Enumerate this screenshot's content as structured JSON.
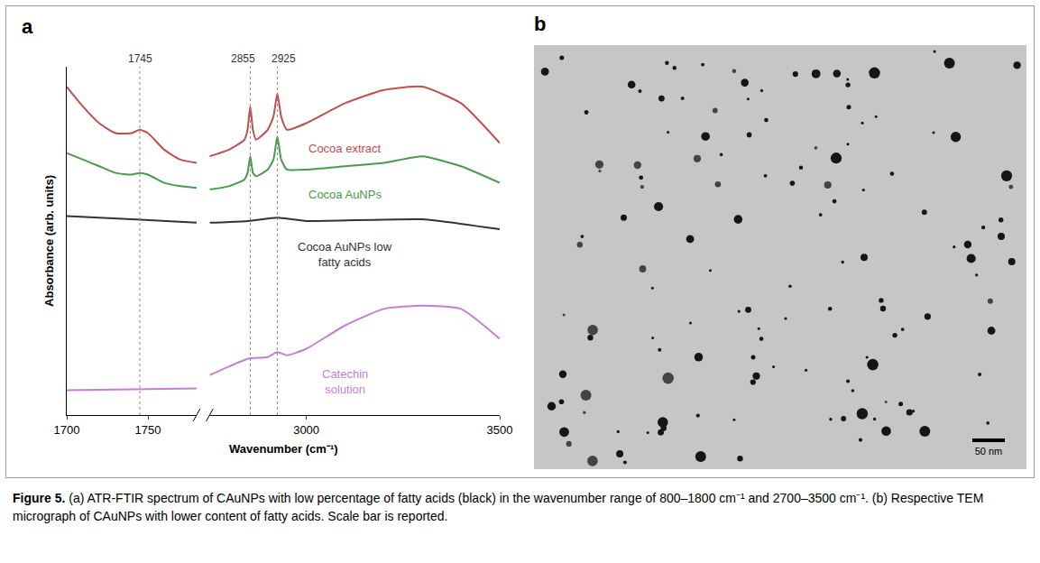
{
  "chart_data": {
    "type": "line",
    "label": "a",
    "x_title": "Wavenumber (cm⁻¹)",
    "y_title": "Absorbance (arb. units)",
    "xlim": [
      [
        1700,
        1780
      ],
      [
        2750,
        3500
      ]
    ],
    "xticks": [
      [
        1700,
        1750
      ],
      [
        3000,
        3500
      ]
    ],
    "ylim": [
      0,
      10.5
    ],
    "tick_labels": "x",
    "grid": false,
    "series": [
      {
        "name": "Cocoa extract",
        "color": "#c0504d",
        "x": [
          1700,
          1710,
          1720,
          1730,
          1740,
          1745,
          1750,
          1760,
          1770,
          1780,
          2750,
          2800,
          2840,
          2848,
          2855,
          2862,
          2870,
          2900,
          2915,
          2925,
          2935,
          2950,
          3000,
          3100,
          3200,
          3300,
          3400,
          3500
        ],
        "values": [
          9.9,
          9.3,
          8.8,
          8.5,
          8.5,
          8.6,
          8.5,
          8.0,
          7.7,
          7.6,
          7.8,
          8.0,
          8.3,
          8.6,
          9.3,
          8.6,
          8.3,
          8.6,
          9.0,
          9.7,
          9.0,
          8.6,
          8.8,
          9.4,
          9.8,
          9.9,
          9.4,
          8.2
        ]
      },
      {
        "name": "Cocoa AuNPs",
        "color": "#4a9a4a",
        "x": [
          1700,
          1710,
          1720,
          1730,
          1740,
          1745,
          1750,
          1760,
          1770,
          1780,
          2750,
          2800,
          2840,
          2848,
          2855,
          2862,
          2870,
          2900,
          2915,
          2925,
          2935,
          2950,
          3000,
          3100,
          3200,
          3300,
          3400,
          3500
        ],
        "values": [
          7.9,
          7.7,
          7.5,
          7.3,
          7.25,
          7.3,
          7.25,
          7.0,
          6.9,
          6.85,
          6.8,
          6.9,
          7.1,
          7.3,
          7.8,
          7.3,
          7.2,
          7.4,
          7.7,
          8.4,
          7.7,
          7.4,
          7.4,
          7.5,
          7.6,
          7.8,
          7.5,
          7.0
        ]
      },
      {
        "name": "Cocoa AuNPs low fatty acids",
        "color": "#333333",
        "x": [
          1700,
          1740,
          1780,
          2750,
          2850,
          2925,
          3000,
          3300,
          3500
        ],
        "values": [
          6.0,
          5.9,
          5.8,
          5.8,
          5.85,
          5.95,
          5.85,
          5.9,
          5.6
        ]
      },
      {
        "name": "Catechin solution",
        "color": "#c77dd6",
        "x": [
          1700,
          1780,
          2750,
          2850,
          2900,
          2925,
          2950,
          3000,
          3100,
          3200,
          3300,
          3400,
          3500
        ],
        "values": [
          0.75,
          0.8,
          1.2,
          1.7,
          1.75,
          1.9,
          1.8,
          2.0,
          2.7,
          3.2,
          3.3,
          3.2,
          2.3
        ]
      }
    ],
    "annotations": [
      {
        "text": "1745",
        "x": 1745
      },
      {
        "text": "2855",
        "x": 2855
      },
      {
        "text": "2925",
        "x": 2925
      }
    ]
  },
  "micrograph": {
    "label": "b",
    "scale_bar": "50 nm"
  },
  "caption": {
    "label": "Figure 5.",
    "text": "(a) ATR-FTIR spectrum of CAuNPs with low percentage of fatty acids (black) in the wavenumber range of 800–1800 cm⁻¹ and 2700–3500 cm⁻¹. (b) Respective TEM micrograph of CAuNPs with lower content of fatty acids. Scale bar is reported."
  }
}
